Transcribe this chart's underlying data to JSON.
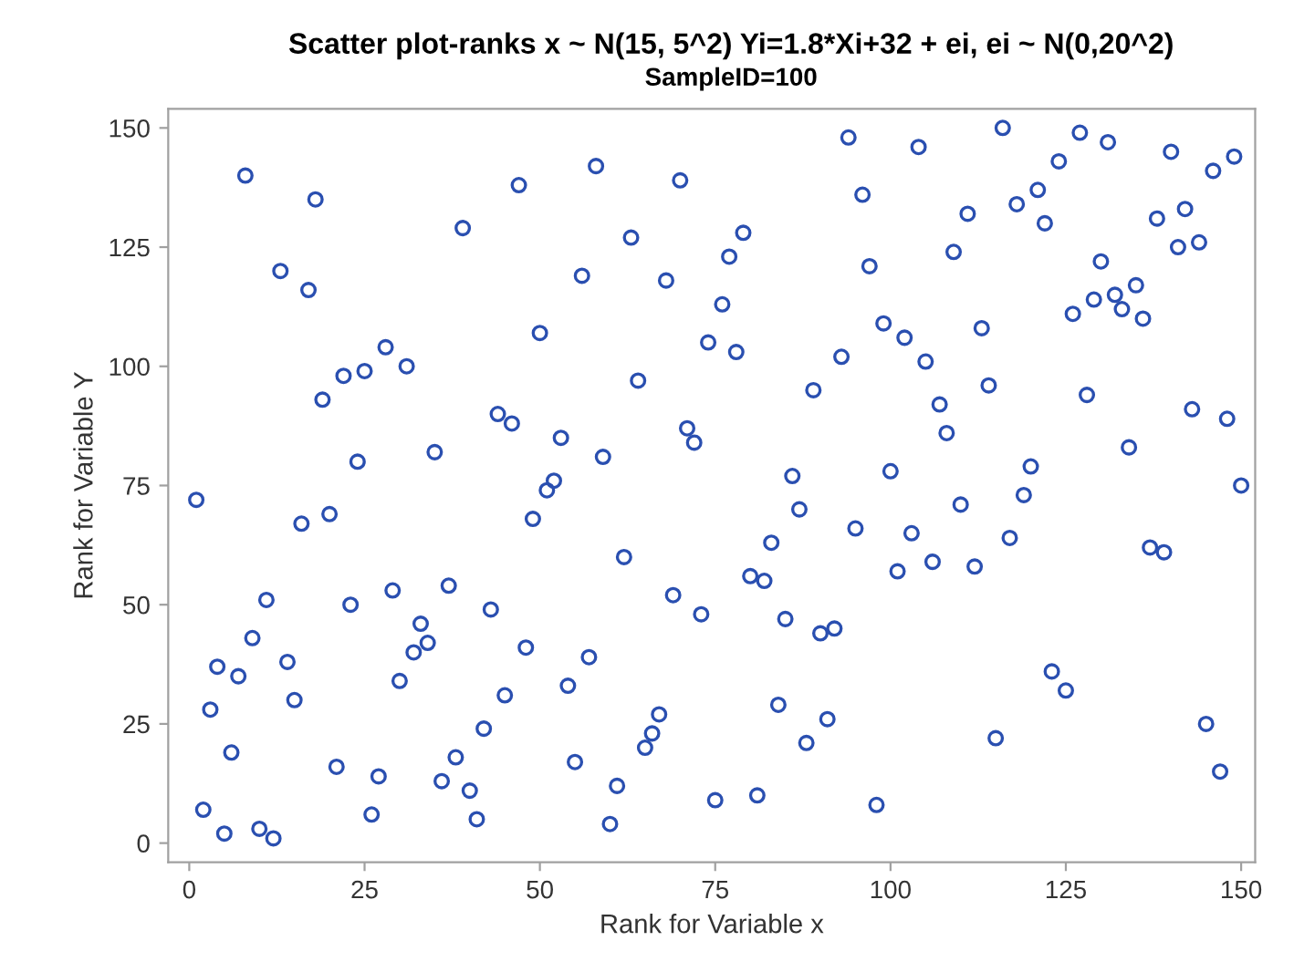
{
  "chart_data": {
    "type": "scatter",
    "title": "Scatter plot-ranks x ~ N(15, 5^2) Yi=1.8*Xi+32 + ei, ei ~ N(0,20^2)",
    "subtitle": "SampleID=100",
    "xlabel": "Rank for Variable x",
    "ylabel": "Rank for Variable Y",
    "xlim": [
      -3,
      152
    ],
    "ylim": [
      -4,
      154
    ],
    "xticks": [
      0,
      25,
      50,
      75,
      100,
      125,
      150
    ],
    "yticks": [
      0,
      25,
      50,
      75,
      100,
      125,
      150
    ],
    "grid": false,
    "marker": "circle",
    "series": [
      {
        "color": "#2a4fb0",
        "x": [
          1,
          2,
          3,
          4,
          5,
          6,
          7,
          8,
          9,
          10,
          11,
          12,
          13,
          14,
          15,
          16,
          17,
          18,
          19,
          20,
          21,
          22,
          23,
          24,
          25,
          26,
          27,
          28,
          29,
          30,
          31,
          32,
          33,
          34,
          35,
          36,
          37,
          38,
          39,
          40,
          41,
          42,
          43,
          44,
          45,
          46,
          47,
          48,
          49,
          50,
          51,
          52,
          53,
          54,
          55,
          56,
          57,
          58,
          59,
          60,
          61,
          62,
          63,
          64,
          65,
          66,
          67,
          68,
          69,
          70,
          71,
          72,
          73,
          74,
          75,
          76,
          77,
          78,
          79,
          80,
          81,
          82,
          83,
          84,
          85,
          86,
          87,
          88,
          89,
          90,
          91,
          92,
          93,
          94,
          95,
          96,
          97,
          98,
          99,
          100,
          101,
          102,
          103,
          104,
          105,
          106,
          107,
          108,
          109,
          110,
          111,
          112,
          113,
          114,
          115,
          116,
          117,
          118,
          119,
          120,
          121,
          122,
          123,
          124,
          125,
          126,
          127,
          128,
          129,
          130,
          131,
          132,
          133,
          134,
          135,
          136,
          137,
          138,
          139,
          140,
          141,
          142,
          143,
          144,
          145,
          146,
          147,
          148,
          149,
          150
        ],
        "values": [
          72,
          7,
          28,
          37,
          2,
          19,
          35,
          140,
          43,
          3,
          51,
          1,
          120,
          38,
          30,
          67,
          116,
          135,
          93,
          69,
          16,
          98,
          50,
          80,
          99,
          6,
          14,
          104,
          53,
          34,
          100,
          40,
          46,
          42,
          82,
          13,
          54,
          18,
          129,
          11,
          5,
          24,
          49,
          90,
          31,
          88,
          138,
          41,
          68,
          107,
          74,
          76,
          85,
          33,
          17,
          119,
          39,
          142,
          81,
          4,
          12,
          60,
          127,
          97,
          20,
          23,
          27,
          118,
          52,
          139,
          87,
          84,
          48,
          105,
          9,
          113,
          123,
          103,
          128,
          56,
          10,
          55,
          63,
          29,
          47,
          77,
          70,
          21,
          95,
          44,
          26,
          45,
          102,
          148,
          66,
          136,
          121,
          8,
          109,
          78,
          57,
          106,
          65,
          146,
          101,
          59,
          92,
          86,
          124,
          71,
          132,
          58,
          108,
          96,
          22,
          150,
          64,
          134,
          73,
          79,
          137,
          130,
          36,
          143,
          32,
          111,
          149,
          94,
          114,
          122,
          147,
          115,
          112,
          83,
          117,
          110,
          62,
          131,
          61,
          145,
          125,
          133,
          91,
          126,
          25,
          141,
          15,
          89,
          144,
          75
        ]
      }
    ]
  }
}
